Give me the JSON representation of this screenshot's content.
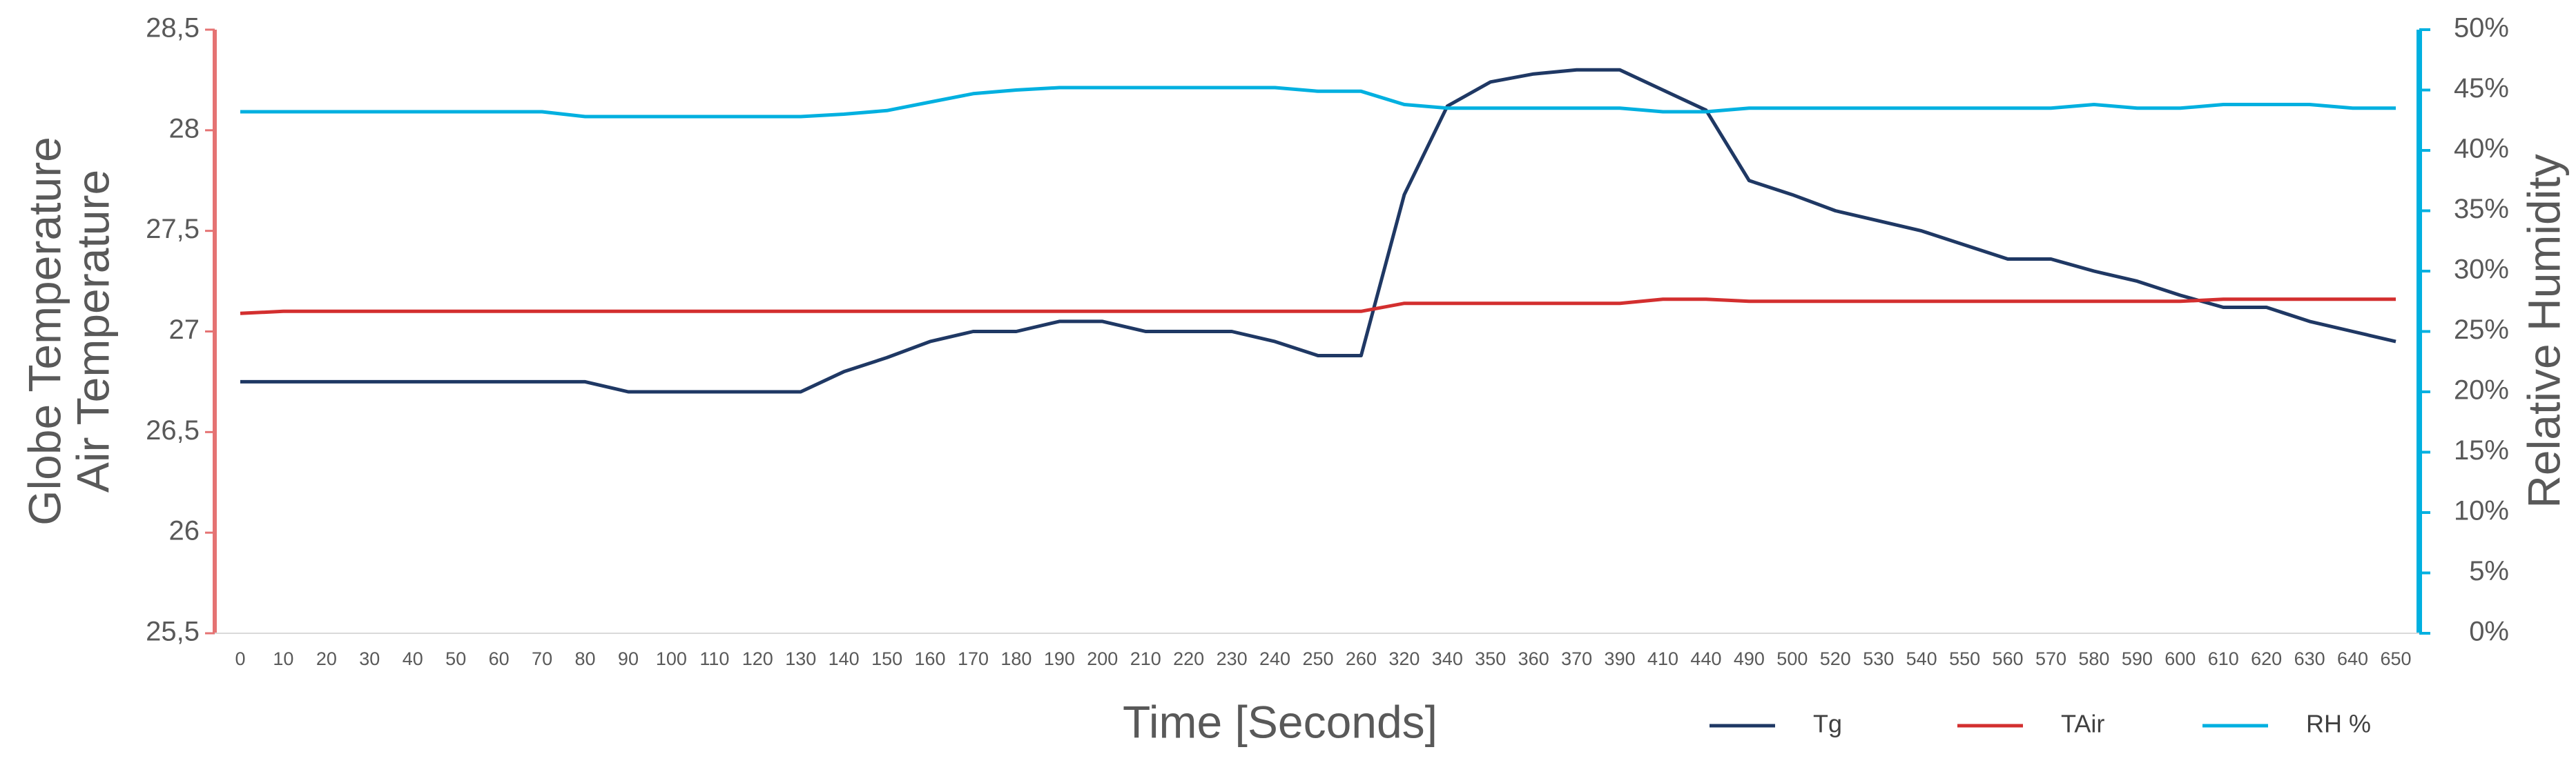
{
  "chart_data": {
    "type": "line",
    "xlabel": "Time [Seconds]",
    "ylabel": [
      "Globe Temperature",
      "Air Temperature"
    ],
    "y2label": "Relative Humidity",
    "categories": [
      "0",
      "10",
      "20",
      "30",
      "40",
      "50",
      "60",
      "70",
      "80",
      "90",
      "100",
      "110",
      "120",
      "130",
      "140",
      "150",
      "160",
      "170",
      "180",
      "190",
      "200",
      "210",
      "220",
      "230",
      "240",
      "250",
      "260",
      "320",
      "340",
      "350",
      "360",
      "370",
      "390",
      "410",
      "440",
      "490",
      "500",
      "520",
      "530",
      "540",
      "550",
      "560",
      "570",
      "580",
      "590",
      "600",
      "610",
      "620",
      "630",
      "640",
      "650"
    ],
    "ylim": [
      25.5,
      28.5
    ],
    "yticks": [
      {
        "value": 25.5,
        "label": "25,5"
      },
      26,
      {
        "value": 26.5,
        "label": "26,5"
      },
      27,
      {
        "value": 27.5,
        "label": "27,5"
      },
      28,
      {
        "value": 28.5,
        "label": "28,5"
      }
    ],
    "y2lim": [
      0,
      50
    ],
    "y2ticks": [
      {
        "value": 0,
        "label": "0%"
      },
      {
        "value": 5,
        "label": "5%"
      },
      {
        "value": 10,
        "label": "10%"
      },
      {
        "value": 15,
        "label": "15%"
      },
      {
        "value": 20,
        "label": "20%"
      },
      {
        "value": 25,
        "label": "25%"
      },
      {
        "value": 30,
        "label": "30%"
      },
      {
        "value": 35,
        "label": "35%"
      },
      {
        "value": 40,
        "label": "40%"
      },
      {
        "value": 45,
        "label": "45%"
      },
      {
        "value": 50,
        "label": "50%"
      }
    ],
    "series": [
      {
        "name": "Tg",
        "color": "#1f3864",
        "values": [
          26.75,
          26.75,
          26.75,
          26.75,
          26.75,
          26.75,
          26.75,
          26.75,
          26.75,
          26.7,
          26.7,
          26.7,
          26.7,
          26.7,
          26.8,
          26.87,
          26.95,
          27.0,
          27.0,
          27.05,
          27.05,
          27.0,
          27.0,
          27.0,
          26.95,
          26.88,
          26.88,
          27.68,
          28.12,
          28.24,
          28.28,
          28.3,
          28.3,
          28.2,
          28.1,
          27.75,
          27.68,
          27.6,
          27.55,
          27.5,
          27.43,
          27.36,
          27.36,
          27.3,
          27.25,
          27.18,
          27.12,
          27.12,
          27.05,
          27.0,
          26.95
        ]
      },
      {
        "name": "TAir",
        "color": "#d32f2f",
        "values": [
          27.09,
          27.1,
          27.1,
          27.1,
          27.1,
          27.1,
          27.1,
          27.1,
          27.1,
          27.1,
          27.1,
          27.1,
          27.1,
          27.1,
          27.1,
          27.1,
          27.1,
          27.1,
          27.1,
          27.1,
          27.1,
          27.1,
          27.1,
          27.1,
          27.1,
          27.1,
          27.1,
          27.14,
          27.14,
          27.14,
          27.14,
          27.14,
          27.14,
          27.16,
          27.16,
          27.15,
          27.15,
          27.15,
          27.15,
          27.15,
          27.15,
          27.15,
          27.15,
          27.15,
          27.15,
          27.15,
          27.16,
          27.16,
          27.16,
          27.16,
          27.16
        ]
      },
      {
        "name": "RH %",
        "color": "#00b0e0",
        "axis": "y2",
        "values": [
          43.2,
          43.2,
          43.2,
          43.2,
          43.2,
          43.2,
          43.2,
          43.2,
          42.8,
          42.8,
          42.8,
          42.8,
          42.8,
          42.8,
          43.0,
          43.3,
          44.0,
          44.7,
          45.0,
          45.2,
          45.2,
          45.2,
          45.2,
          45.2,
          45.2,
          44.9,
          44.9,
          43.8,
          43.5,
          43.5,
          43.5,
          43.5,
          43.5,
          43.2,
          43.2,
          43.5,
          43.5,
          43.5,
          43.5,
          43.5,
          43.5,
          43.5,
          43.5,
          43.8,
          43.5,
          43.5,
          43.8,
          43.8,
          43.8,
          43.5,
          43.5
        ]
      }
    ]
  }
}
